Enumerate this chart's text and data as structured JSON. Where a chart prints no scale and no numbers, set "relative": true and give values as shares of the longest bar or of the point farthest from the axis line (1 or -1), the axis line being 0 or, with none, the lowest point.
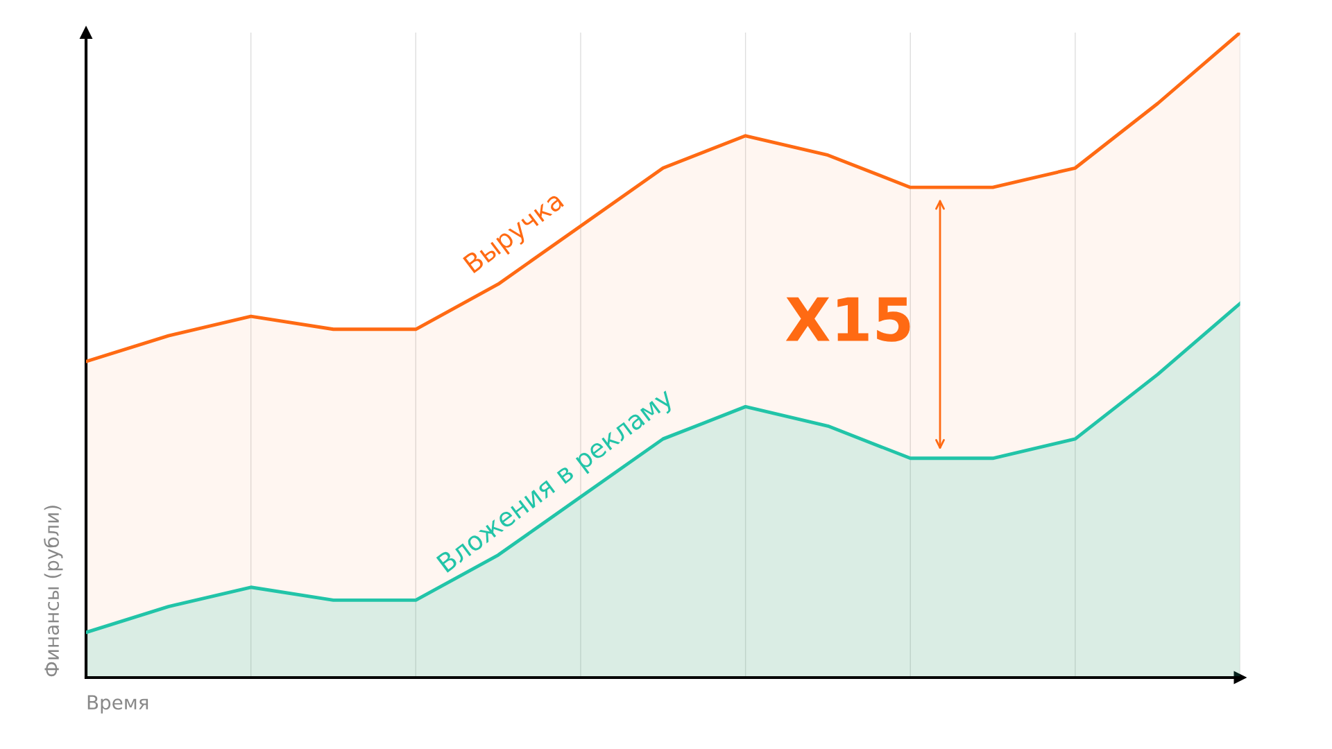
{
  "chart_data": {
    "type": "area",
    "relative": true,
    "xlabel": "Время",
    "ylabel": "Финансы (рубли)",
    "categories": [
      null,
      null,
      null,
      null,
      null,
      null,
      null,
      null,
      null,
      null,
      null,
      null,
      null,
      null,
      null
    ],
    "grid": "x",
    "series": [
      {
        "name": "Выручка",
        "color": "#ff6a13",
        "values": [
          0.49,
          0.53,
          0.56,
          0.54,
          0.54,
          0.61,
          0.7,
          0.79,
          0.84,
          0.81,
          0.76,
          0.76,
          0.79,
          0.89,
          1.0
        ]
      },
      {
        "name": "Вложения в рекламу",
        "color": "#22c4a8",
        "values": [
          0.07,
          0.11,
          0.14,
          0.12,
          0.12,
          0.19,
          0.28,
          0.37,
          0.42,
          0.39,
          0.34,
          0.34,
          0.37,
          0.47,
          0.58
        ]
      }
    ],
    "annotations": [
      "X15"
    ]
  }
}
